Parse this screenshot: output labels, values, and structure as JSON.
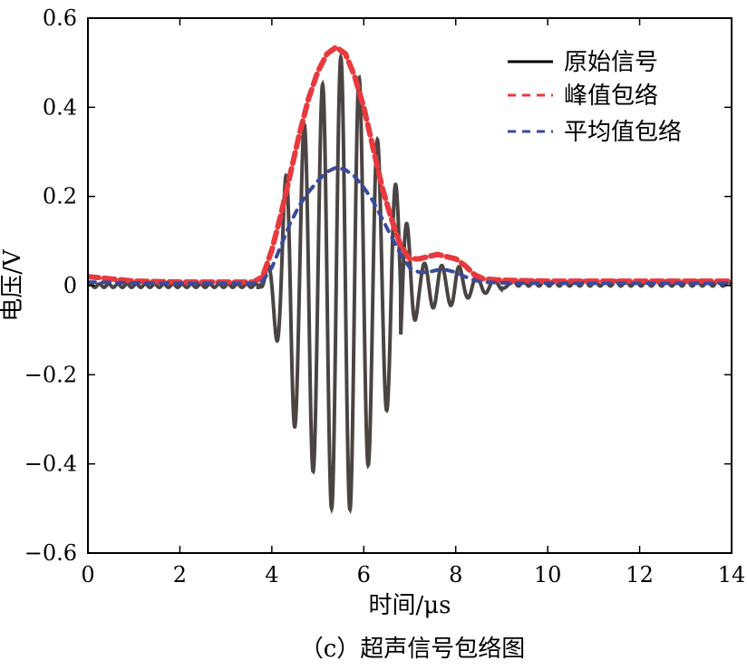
{
  "chart_data": {
    "type": "line",
    "xlabel": "时间/μs",
    "ylabel": "电压/V",
    "caption": "（c）超声信号包络图",
    "xlim": [
      0,
      14
    ],
    "ylim": [
      -0.6,
      0.6
    ],
    "xticks": [
      0,
      2,
      4,
      6,
      8,
      10,
      12,
      14
    ],
    "xtick_labels": [
      "0",
      "2",
      "4",
      "6",
      "8",
      "10",
      "12",
      "14"
    ],
    "yticks": [
      -0.6,
      -0.4,
      -0.2,
      0,
      0.2,
      0.4,
      0.6
    ],
    "ytick_labels": [
      "−0.6",
      "−0.4",
      "−0.2",
      "0",
      "0.2",
      "0.4",
      "0.6"
    ],
    "grid": false,
    "legend_position": "top-right",
    "legend": [
      "原始信号",
      "峰值包络",
      "平均值包络"
    ],
    "series": [
      {
        "name": "原始信号",
        "color": "#4a4442",
        "style": "solid",
        "description_values": {
          "x": [
            3.75,
            4.0,
            4.2,
            4.42,
            4.6,
            4.82,
            5.0,
            5.2,
            5.38,
            5.58,
            5.78,
            5.98,
            6.18,
            6.4,
            6.6,
            6.8,
            7.0,
            7.2,
            7.4,
            7.6,
            7.8,
            8.0,
            8.2,
            8.5,
            9.0
          ],
          "y": [
            0.0,
            0.07,
            -0.17,
            0.33,
            -0.3,
            0.43,
            -0.4,
            0.5,
            -0.5,
            0.52,
            -0.49,
            0.45,
            -0.37,
            0.29,
            -0.27,
            0.18,
            -0.12,
            0.05,
            -0.05,
            0.05,
            -0.04,
            0.05,
            -0.03,
            0.02,
            0.01
          ]
        }
      },
      {
        "name": "峰值包络",
        "color": "#e8393e",
        "style": "dashed",
        "x": [
          0,
          0.5,
          1.0,
          2.0,
          3.0,
          3.6,
          3.8,
          4.0,
          4.2,
          4.4,
          4.6,
          4.8,
          5.0,
          5.2,
          5.4,
          5.6,
          5.8,
          6.0,
          6.2,
          6.4,
          6.6,
          6.8,
          7.0,
          7.2,
          7.4,
          7.6,
          7.8,
          8.0,
          8.2,
          8.4,
          8.6,
          9.0,
          10.0,
          11.0,
          12.0,
          13.0,
          14.0
        ],
        "y": [
          0.02,
          0.015,
          0.01,
          0.008,
          0.008,
          0.008,
          0.02,
          0.08,
          0.16,
          0.25,
          0.34,
          0.42,
          0.48,
          0.52,
          0.535,
          0.52,
          0.47,
          0.4,
          0.31,
          0.22,
          0.15,
          0.09,
          0.06,
          0.06,
          0.065,
          0.07,
          0.065,
          0.06,
          0.045,
          0.025,
          0.015,
          0.012,
          0.01,
          0.01,
          0.01,
          0.01,
          0.01
        ]
      },
      {
        "name": "平均值包络",
        "color": "#3a4a9c",
        "style": "dashed",
        "x": [
          0,
          1.0,
          2.0,
          3.0,
          3.6,
          3.8,
          4.0,
          4.2,
          4.4,
          4.6,
          4.8,
          5.0,
          5.2,
          5.4,
          5.6,
          5.8,
          6.0,
          6.2,
          6.4,
          6.6,
          6.8,
          7.0,
          7.2,
          7.4,
          7.6,
          7.8,
          8.0,
          8.2,
          8.4,
          8.6,
          9.0,
          10.0,
          11.0,
          12.0,
          13.0,
          14.0
        ],
        "y": [
          0.008,
          0.006,
          0.005,
          0.005,
          0.005,
          0.01,
          0.04,
          0.09,
          0.14,
          0.18,
          0.21,
          0.235,
          0.255,
          0.265,
          0.26,
          0.245,
          0.22,
          0.19,
          0.15,
          0.11,
          0.07,
          0.04,
          0.03,
          0.03,
          0.035,
          0.035,
          0.03,
          0.02,
          0.012,
          0.008,
          0.006,
          0.005,
          0.005,
          0.005,
          0.005,
          0.005
        ]
      }
    ]
  }
}
